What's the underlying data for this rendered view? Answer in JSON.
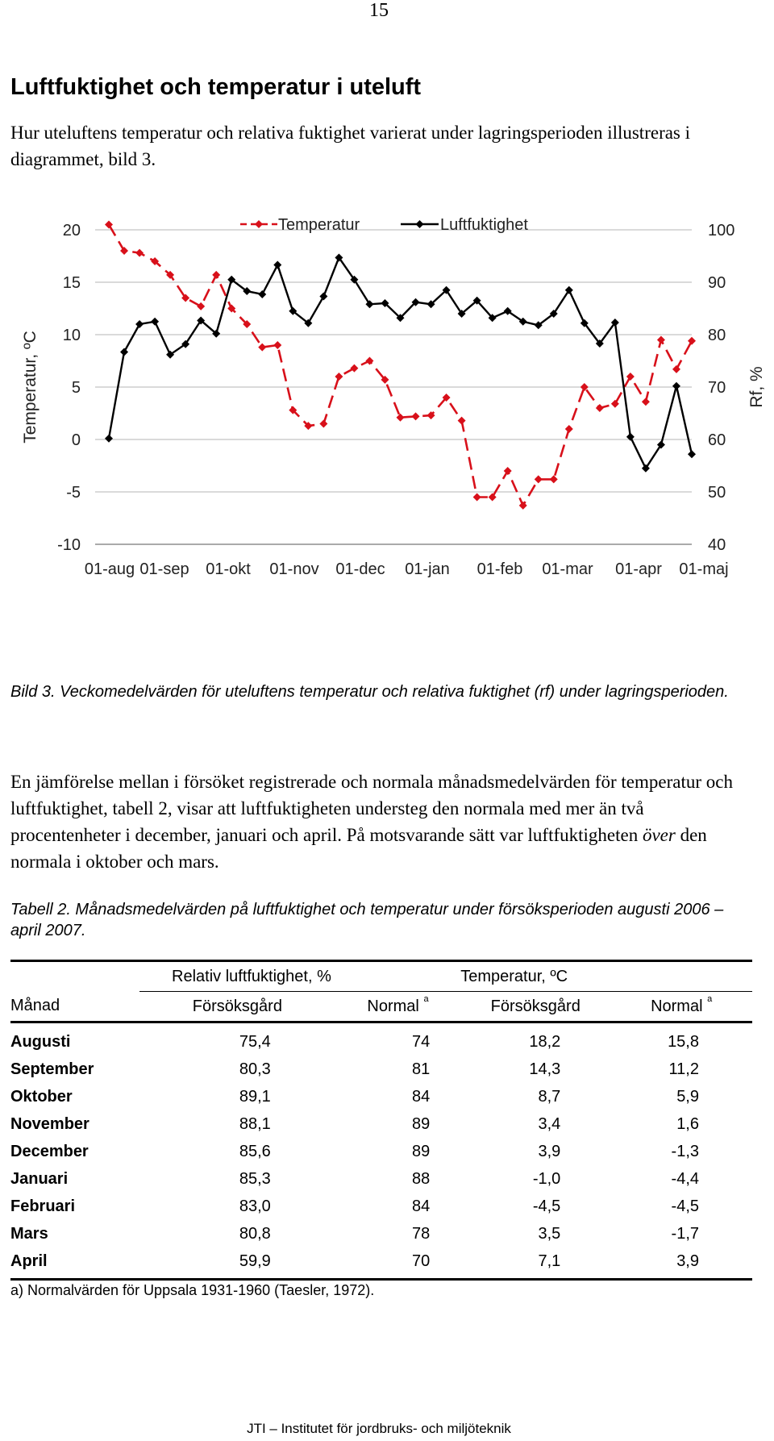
{
  "page_number": "15",
  "heading": "Luftfuktighet och temperatur i uteluft",
  "intro_text": "Hur uteluftens temperatur och relativa fuktighet varierat under lagringsperioden illustreras i diagrammet, bild 3.",
  "chart_data": {
    "type": "line",
    "title": "",
    "ylabel_left": "Temperatur, ºC",
    "ylabel_right": "Rf, %",
    "ylim_left": [
      -10,
      20
    ],
    "ylim_right": [
      40,
      100
    ],
    "yticks_left": [
      "20",
      "15",
      "10",
      "5",
      "0",
      "-5",
      "-10"
    ],
    "yticks_right": [
      "100",
      "90",
      "80",
      "70",
      "60",
      "50",
      "40"
    ],
    "x_tick_labels": [
      "01-aug",
      "01-sep",
      "01-okt",
      "01-nov",
      "01-dec",
      "01-jan",
      "01-feb",
      "01-mar",
      "01-apr",
      "01-maj"
    ],
    "grid": "horizontal",
    "legend_position": "top",
    "series": [
      {
        "name": "Temperatur",
        "axis": "left",
        "color": "#d8101a",
        "style": "dashed",
        "marker": "diamond",
        "values": [
          20.5,
          18.0,
          17.8,
          17.0,
          15.7,
          13.5,
          12.7,
          15.7,
          12.5,
          11.0,
          8.8,
          9.0,
          2.8,
          1.3,
          1.5,
          6.0,
          6.8,
          7.5,
          5.7,
          2.1,
          2.2,
          2.3,
          4.0,
          1.8,
          -5.5,
          -5.5,
          -3.0,
          -6.3,
          -3.8,
          -3.8,
          1.0,
          5.0,
          3.0,
          3.4,
          6.0,
          3.6,
          9.5,
          6.7,
          9.4
        ]
      },
      {
        "name": "Luftfuktighet",
        "axis": "right",
        "color": "#000000",
        "style": "solid",
        "marker": "diamond",
        "values": [
          60.2,
          76.7,
          82.0,
          82.5,
          76.2,
          78.2,
          82.7,
          80.2,
          90.5,
          88.3,
          87.7,
          93.3,
          84.5,
          82.2,
          87.3,
          94.7,
          90.5,
          85.8,
          86.0,
          83.2,
          86.2,
          85.8,
          88.5,
          84.0,
          86.5,
          83.2,
          84.5,
          82.5,
          81.8,
          84.0,
          88.5,
          82.2,
          78.3,
          82.3,
          60.5,
          54.5,
          59.0,
          70.2,
          57.2
        ]
      }
    ]
  },
  "figure_caption": "Bild 3. Veckomedelvärden för uteluftens temperatur och relativa fuktighet (rf) under lagringsperioden.",
  "comparison_text": {
    "part1": "En jämförelse mellan i försöket registrerade och normala månadsmedelvärden för temperatur och luftfuktighet, tabell 2, visar att luftfuktigheten understeg den normala med mer än två procentenheter i december, januari och april. På motsvarande sätt var luftfuktigheten ",
    "emphasis": "över",
    "part2": " den normala i oktober och mars."
  },
  "table_caption": "Tabell 2. Månadsmedelvärden på luftfuktighet och temperatur under försöksperioden augusti 2006 – april 2007.",
  "table": {
    "group_headers": [
      "Relativ luftfuktighet, %",
      "Temperatur, ºC"
    ],
    "month_header": "Månad",
    "column_headers": [
      "Försöksgård",
      "Normal",
      "Försöksgård",
      "Normal"
    ],
    "footnote_marker": "a",
    "rows": [
      {
        "month": "Augusti",
        "rf_farm": "75,4",
        "rf_normal": "74",
        "t_farm": "18,2",
        "t_normal": "15,8"
      },
      {
        "month": "September",
        "rf_farm": "80,3",
        "rf_normal": "81",
        "t_farm": "14,3",
        "t_normal": "11,2"
      },
      {
        "month": "Oktober",
        "rf_farm": "89,1",
        "rf_normal": "84",
        "t_farm": "8,7",
        "t_normal": "5,9"
      },
      {
        "month": "November",
        "rf_farm": "88,1",
        "rf_normal": "89",
        "t_farm": "3,4",
        "t_normal": "1,6"
      },
      {
        "month": "December",
        "rf_farm": "85,6",
        "rf_normal": "89",
        "t_farm": "3,9",
        "t_normal": "-1,3"
      },
      {
        "month": "Januari",
        "rf_farm": "85,3",
        "rf_normal": "88",
        "t_farm": "-1,0",
        "t_normal": "-4,4"
      },
      {
        "month": "Februari",
        "rf_farm": "83,0",
        "rf_normal": "84",
        "t_farm": "-4,5",
        "t_normal": "-4,5"
      },
      {
        "month": "Mars",
        "rf_farm": "80,8",
        "rf_normal": "78",
        "t_farm": "3,5",
        "t_normal": "-1,7"
      },
      {
        "month": "April",
        "rf_farm": "59,9",
        "rf_normal": "70",
        "t_farm": "7,1",
        "t_normal": "3,9"
      }
    ]
  },
  "footnote": "a) Normalvärden för Uppsala 1931-1960 (Taesler, 1972).",
  "footer": "JTI – Institutet för jordbruks- och miljöteknik"
}
